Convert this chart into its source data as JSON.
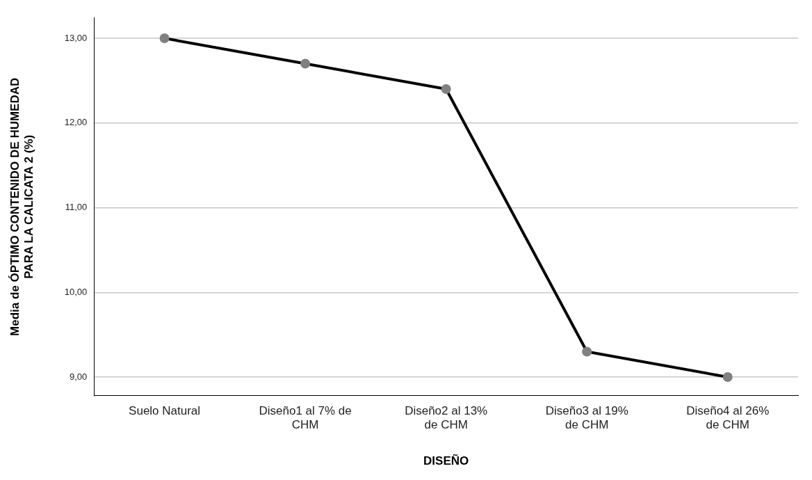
{
  "chart_data": {
    "type": "line",
    "xlabel": "DISEÑO",
    "ylabel": "Media de ÓPTIMO CONTENIDO DE HUMEDAD PARA LA CALICATA 2 (%)",
    "categories": [
      "Suelo Natural",
      "Diseño1 al 7% de CHM",
      "Diseño2 al 13% de CHM",
      "Diseño3 al 19% de CHM",
      "Diseño4 al 26% de CHM"
    ],
    "series": [
      {
        "color": "#000000",
        "values": [
          13.0,
          12.7,
          12.4,
          9.3,
          9.0
        ]
      }
    ],
    "marker": "circle",
    "line_style": "solid",
    "ylim": [
      8.78,
      13.24
    ],
    "yticks": [
      {
        "value": 9,
        "label": "9,00"
      },
      {
        "value": 10,
        "label": "10,00"
      },
      {
        "value": 11,
        "label": "11,00"
      },
      {
        "value": 12,
        "label": "12,00"
      },
      {
        "value": 13,
        "label": "13,00"
      }
    ],
    "grid": "y",
    "legend": false
  }
}
